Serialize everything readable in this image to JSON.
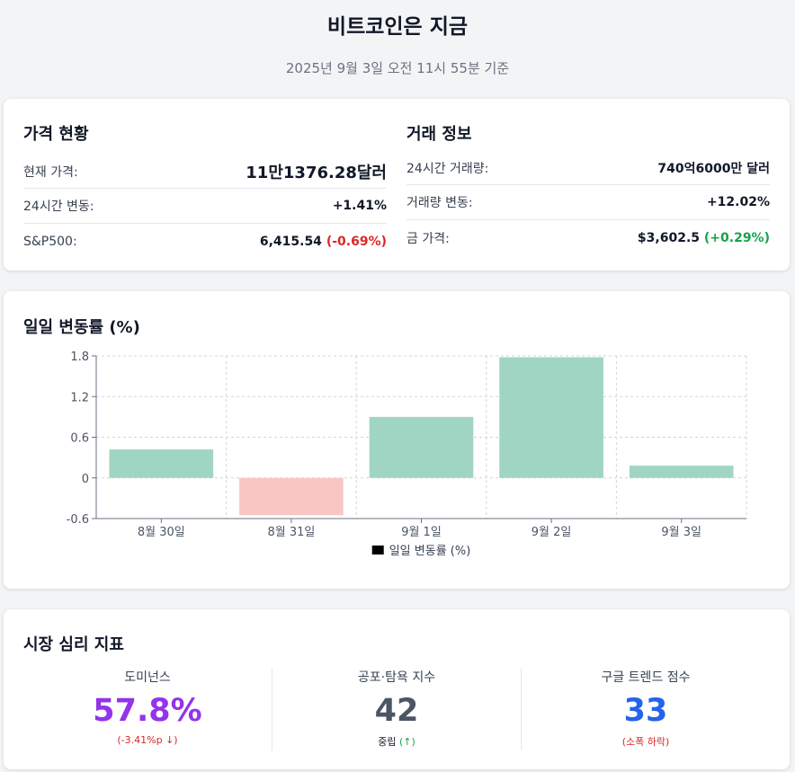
{
  "header": {
    "title": "비트코인은 지금",
    "subtitle": "2025년 9월 3일 오전 11시 55분 기준"
  },
  "price": {
    "title": "가격 현황",
    "current_label": "현재 가격:",
    "current_value": "11만1376.28달러",
    "change_label": "24시간 변동:",
    "change_value": "+1.41%",
    "sp_label": "S&P500:",
    "sp_value": "6,415.54",
    "sp_change": "(-0.69%)"
  },
  "trade": {
    "title": "거래 정보",
    "volume_label": "24시간 거래량:",
    "volume_value": "740억6000만 달러",
    "volume_change_label": "거래량 변동:",
    "volume_change_value": "+12.02%",
    "gold_label": "금 가격:",
    "gold_value": "$3,602.5",
    "gold_change": "(+0.29%)"
  },
  "chart": {
    "title": "일일 변동률 (%)"
  },
  "chart_data": {
    "type": "bar",
    "categories": [
      "8월 30일",
      "8월 31일",
      "9월 1일",
      "9월 2일",
      "9월 3일"
    ],
    "series": [
      {
        "name": "일일 변동률 (%)",
        "values": [
          0.42,
          -0.55,
          0.9,
          1.78,
          0.18
        ]
      }
    ],
    "ylim": [
      -0.6,
      1.8
    ],
    "yticks": [
      "1.8",
      "1.2",
      "0.6",
      "0",
      "-0.6"
    ],
    "grid": true,
    "legend_position": "bottom",
    "colors": {
      "positive": "#a1d5c3",
      "negative": "#f9c7c3",
      "legend_swatch": "#000000"
    }
  },
  "sentiment": {
    "title": "시장 심리 지표",
    "dominance": {
      "label": "도미넌스",
      "value": "57.8%",
      "sub": "(-3.41%p ↓)",
      "color": "#9333ea",
      "sub_color": "#dc2626"
    },
    "fear_greed": {
      "label": "공포·탐욕 지수",
      "value": "42",
      "sub_word": "중립",
      "sub_arrow": "(↑)",
      "color": "#4b5563",
      "arrow_color": "#16a34a"
    },
    "google": {
      "label": "구글 트렌드 점수",
      "value": "33",
      "sub": "(소폭 하락)",
      "color": "#2563eb",
      "sub_color": "#dc2626"
    }
  }
}
